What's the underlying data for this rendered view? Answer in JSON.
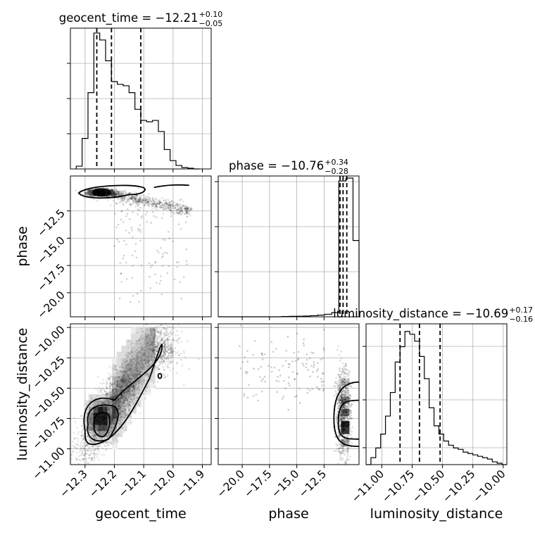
{
  "chart_data": {
    "type": "corner",
    "parameters": [
      "geocent_time",
      "phase",
      "luminosity_distance"
    ],
    "axis_labels": {
      "geocent_time": "geocent_time",
      "phase": "phase",
      "luminosity_distance": "luminosity_distance"
    },
    "titles": [
      {
        "param": "geocent_time",
        "prefix": "geocent_time = ",
        "median": "−12.21",
        "plus": "+0.10",
        "minus": "−0.05"
      },
      {
        "param": "phase",
        "prefix": "phase = ",
        "median": "−10.76",
        "plus": "+0.34",
        "minus": "−0.28"
      },
      {
        "param": "luminosity_distance",
        "prefix": "luminosity_distance = ",
        "median": "−10.69",
        "plus": "+0.17",
        "minus": "−0.16"
      }
    ],
    "ranges": {
      "geocent_time": [
        -12.35,
        -11.87
      ],
      "phase": [
        -22.2,
        -9.3
      ],
      "luminosity_distance": [
        -11.13,
        -9.97
      ]
    },
    "ticks": {
      "geocent_time": {
        "values": [
          -12.3,
          -12.2,
          -12.1,
          -12.0,
          -11.9
        ],
        "labels": [
          "−12.3",
          "−12.2",
          "−12.1",
          "−12.0",
          "−11.9"
        ]
      },
      "phase_y": {
        "values": [
          -12.5,
          -15.0,
          -17.5,
          -20.0
        ],
        "labels": [
          "−12.5",
          "−15.0",
          "−17.5",
          "−20.0"
        ]
      },
      "phase_x": {
        "values": [
          -20.0,
          -17.5,
          -15.0,
          -12.5
        ],
        "labels": [
          "−20.0",
          "−17.5",
          "−15.0",
          "−12.5"
        ]
      },
      "luminosity_distance": {
        "values": [
          -10.0,
          -10.25,
          -10.5,
          -10.75,
          -11.0
        ],
        "labels": [
          "−10.00",
          "−10.25",
          "−10.50",
          "−10.75",
          "−11.00"
        ]
      }
    },
    "histograms": {
      "geocent_time": {
        "edges": [
          -12.33,
          -12.31,
          -12.29,
          -12.27,
          -12.25,
          -12.23,
          -12.21,
          -12.19,
          -12.17,
          -12.15,
          -12.13,
          -12.11,
          -12.09,
          -12.07,
          -12.05,
          -12.03,
          -12.01,
          -11.99,
          -11.97,
          -11.95,
          -11.93,
          -11.91
        ],
        "counts": [
          0.02,
          0.22,
          0.55,
          0.98,
          0.93,
          0.78,
          0.63,
          0.61,
          0.6,
          0.55,
          0.43,
          0.35,
          0.34,
          0.35,
          0.27,
          0.14,
          0.06,
          0.025,
          0.01,
          0.005,
          0.0
        ],
        "quantiles": [
          -12.26,
          -12.21,
          -12.11
        ]
      },
      "phase": {
        "edges": [
          -22.2,
          -21.55,
          -20.9,
          -20.25,
          -19.6,
          -18.95,
          -18.3,
          -17.65,
          -17.0,
          -16.35,
          -15.7,
          -15.05,
          -14.4,
          -13.75,
          -13.1,
          -12.45,
          -11.8,
          -11.15,
          -10.5,
          -9.85,
          -9.3
        ],
        "counts": [
          0,
          0,
          0,
          0,
          0,
          0,
          0,
          0,
          0,
          0.002,
          0.003,
          0.004,
          0.005,
          0.008,
          0.012,
          0.018,
          0.03,
          0.98,
          1.0,
          0.55
        ],
        "quantiles": [
          -11.04,
          -10.76,
          -10.42
        ]
      },
      "luminosity_distance": {
        "edges": [
          -11.13,
          -11.09,
          -11.05,
          -11.01,
          -10.97,
          -10.93,
          -10.89,
          -10.85,
          -10.81,
          -10.77,
          -10.73,
          -10.69,
          -10.65,
          -10.61,
          -10.57,
          -10.53,
          -10.49,
          -10.45,
          -10.41,
          -10.37,
          -10.33,
          -10.29,
          -10.25,
          -10.21,
          -10.17,
          -10.13,
          -10.09,
          -10.05,
          -10.01,
          -9.97
        ],
        "counts": [
          0,
          0.05,
          0.12,
          0.22,
          0.35,
          0.52,
          0.74,
          0.85,
          0.96,
          0.94,
          0.89,
          0.78,
          0.62,
          0.41,
          0.28,
          0.22,
          0.17,
          0.14,
          0.12,
          0.11,
          0.09,
          0.08,
          0.07,
          0.06,
          0.05,
          0.04,
          0.02,
          0.01,
          0
        ],
        "quantiles": [
          -10.85,
          -10.69,
          -10.52
        ]
      }
    },
    "scatter_2d": [
      {
        "x": "geocent_time",
        "y": "phase",
        "center": [
          -12.245,
          -10.8
        ],
        "spread_x": 0.045,
        "spread_y": 0.45
      },
      {
        "x": "geocent_time",
        "y": "luminosity_distance",
        "center": [
          -12.22,
          -10.72
        ],
        "correlation": "positive"
      },
      {
        "x": "phase",
        "y": "luminosity_distance",
        "center": [
          -10.7,
          -10.75
        ]
      }
    ],
    "grid": true
  }
}
